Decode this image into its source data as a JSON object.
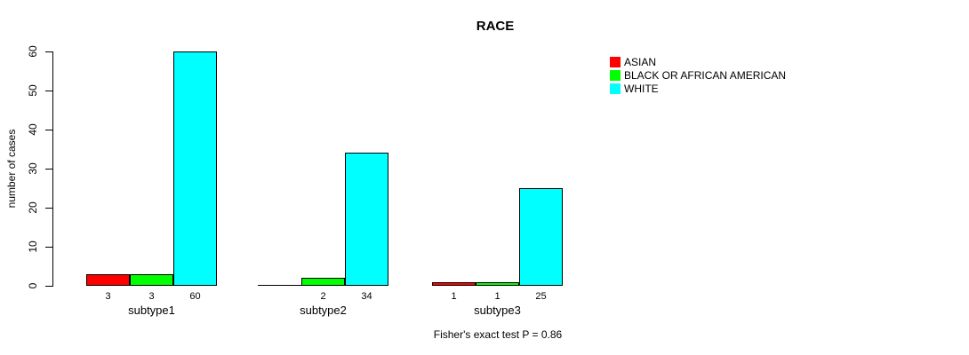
{
  "chart_data": {
    "type": "bar",
    "title": "RACE",
    "ylabel": "number of cases",
    "categories": [
      "subtype1",
      "subtype2",
      "subtype3"
    ],
    "series": [
      {
        "name": "ASIAN",
        "color": "#ff0000",
        "values": [
          3,
          0,
          1
        ]
      },
      {
        "name": "BLACK OR AFRICAN AMERICAN",
        "color": "#00ff00",
        "values": [
          3,
          2,
          1
        ]
      },
      {
        "name": "WHITE",
        "color": "#00ffff",
        "values": [
          60,
          34,
          25
        ]
      }
    ],
    "value_labels": [
      [
        "3",
        "3",
        "60"
      ],
      [
        "",
        "2",
        "34"
      ],
      [
        "1",
        "1",
        "25"
      ]
    ],
    "yticks": [
      0,
      10,
      20,
      30,
      40,
      50,
      60
    ],
    "ylim": [
      0,
      60
    ],
    "grid": false,
    "legend_position": "top-right",
    "annotation": "Fisher's exact test P = 0.86",
    "axis_color": "#000000",
    "background_color": "#ffffff"
  }
}
